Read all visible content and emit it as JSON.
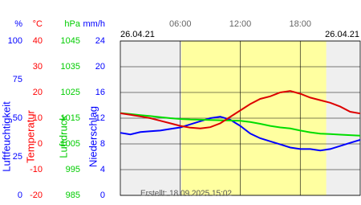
{
  "chart_data": {
    "type": "line",
    "start_date": "26.04.21",
    "end_date": "26.04.21",
    "footer": "Erstellt: 18.09.2025 15:02",
    "xlim": [
      0,
      24
    ],
    "xticks": [
      {
        "value": 6,
        "label": "06:00"
      },
      {
        "value": 12,
        "label": "12:00"
      },
      {
        "value": 18,
        "label": "18:00"
      }
    ],
    "daylight": [
      6.1,
      20.6
    ],
    "grid": true,
    "axes": [
      {
        "unit": "%",
        "title": "Luftfeuchtigkeit",
        "color": "#0000ff",
        "lim": [
          0,
          100
        ],
        "ticks": [
          100,
          75,
          50,
          25,
          0
        ]
      },
      {
        "unit": "°C",
        "title": "Temperatur",
        "color": "#ff0000",
        "lim": [
          -20,
          40
        ],
        "ticks": [
          40,
          30,
          20,
          10,
          0,
          -10,
          -20
        ]
      },
      {
        "unit": "hPa",
        "title": "Luftdruck",
        "color": "#00cc00",
        "lim": [
          985,
          1045
        ],
        "ticks": [
          1045,
          1035,
          1025,
          1015,
          1005,
          995,
          985
        ]
      },
      {
        "unit": "mm/h",
        "title": "Niederschlag",
        "color": "#0000ff",
        "lim": [
          0,
          24
        ],
        "ticks": [
          24,
          20,
          16,
          12,
          8,
          4,
          0
        ]
      }
    ],
    "x": [
      0,
      1,
      2,
      3,
      4,
      5,
      6,
      7,
      8,
      9,
      10,
      11,
      12,
      13,
      14,
      15,
      16,
      17,
      18,
      19,
      20,
      21,
      22,
      23,
      24
    ],
    "series": [
      {
        "axis": 0,
        "color": "#0000ff",
        "values": [
          40.5,
          39.5,
          41,
          41.5,
          42,
          43,
          44,
          46,
          48,
          50,
          51,
          49,
          45,
          40,
          37,
          35,
          33,
          31,
          30,
          30,
          29,
          30,
          32,
          34,
          36
        ]
      },
      {
        "axis": 2,
        "color": "#00dd00",
        "values": [
          1017,
          1016.6,
          1016.2,
          1015.8,
          1015.4,
          1015,
          1014.7,
          1014.5,
          1014.4,
          1014.3,
          1014.2,
          1014.1,
          1014,
          1013.5,
          1012.8,
          1012,
          1011.4,
          1011,
          1010.2,
          1009.5,
          1009,
          1008.8,
          1008.6,
          1008.4,
          1008.2
        ]
      },
      {
        "axis": 1,
        "color": "#dd0000",
        "values": [
          11.9,
          11.3,
          10.7,
          10,
          9,
          8,
          7,
          6.3,
          6,
          6.5,
          8,
          10.5,
          13,
          15.5,
          17.5,
          18.5,
          20,
          20.6,
          19.5,
          18,
          17,
          16,
          14.5,
          12.5,
          11.8
        ]
      }
    ]
  }
}
